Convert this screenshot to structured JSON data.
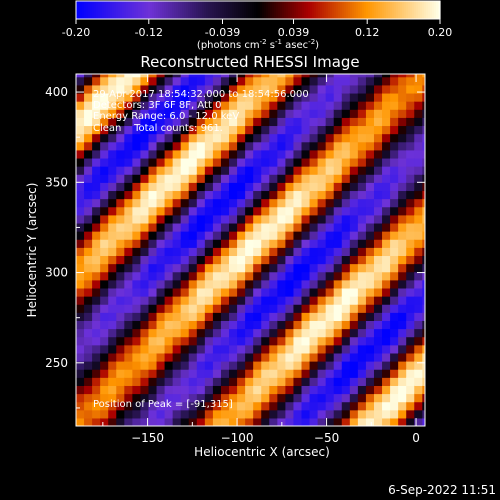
{
  "chart_data": {
    "type": "heatmap",
    "title": "Reconstructed RHESSI Image",
    "xlabel": "Heliocentric X (arcsec)",
    "ylabel": "Heliocentric Y (arcsec)",
    "xlim": [
      -190,
      5
    ],
    "ylim": [
      215,
      410
    ],
    "x_ticks": [
      -150,
      -100,
      -50,
      0
    ],
    "y_ticks": [
      250,
      300,
      350,
      400
    ],
    "colorbar": {
      "vmin": -0.2,
      "vmax": 0.2,
      "ticks": [
        "-0.20",
        "-0.12",
        "-0.039",
        "0.039",
        "0.12",
        "0.20"
      ],
      "tick_values": [
        -0.2,
        -0.12,
        -0.039,
        0.039,
        0.12,
        0.2
      ],
      "unit_prefix": "(photons cm",
      "unit_exp1": "-2",
      "unit_mid": " s",
      "unit_exp2": "-1",
      "unit_mid2": " asec",
      "unit_exp3": "-2",
      "unit_suffix": ")"
    },
    "annotations": [
      "29-Apr-2017 18:54:32.000 to 18:54:56.000",
      "Detectors: 3F 6F 8F, Att 0",
      "Energy Range: 6.0 - 12.0 keV",
      "Clean    Total counts: 961."
    ],
    "peak_label": "Position of Peak = [-91,315]",
    "peak": [
      -91,
      315
    ],
    "stripe_direction": [
      1,
      1
    ],
    "stripe_period_arcsec": 58
  },
  "footer": {
    "date": "6-Sep-2022 11:51"
  }
}
